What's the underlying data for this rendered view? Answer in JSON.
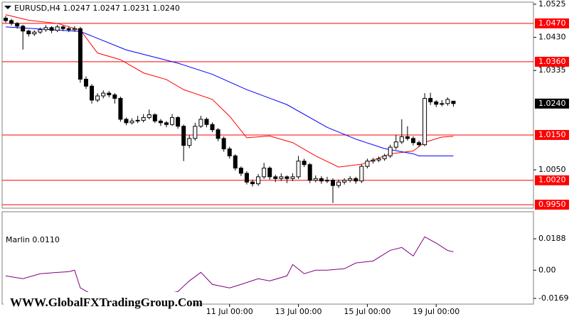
{
  "chart_data": [
    {
      "type": "candlestick",
      "title": "EURUSD,H4  1.0247 1.0247 1.0231 1.0240",
      "categories": [
        null,
        null,
        null,
        null,
        null,
        null,
        null,
        null,
        null,
        null,
        null,
        null,
        null,
        null,
        null,
        null,
        null,
        null,
        null,
        null,
        null,
        null,
        null,
        null,
        null,
        null,
        null,
        null,
        null,
        null,
        null,
        null,
        null,
        null,
        null,
        null,
        null,
        null,
        null,
        "11 Jul 00:00",
        null,
        null,
        null,
        null,
        null,
        null,
        null,
        null,
        null,
        null,
        null,
        "13 Jul 00:00",
        null,
        null,
        null,
        null,
        null,
        null,
        null,
        null,
        null,
        null,
        null,
        "15 Jul 00:00",
        null,
        null,
        null,
        null,
        null,
        null,
        null,
        null,
        null,
        null,
        null,
        "19 Jul 00:00",
        null,
        null,
        null
      ],
      "ohlc": [
        [
          1.0485,
          1.0492,
          1.0472,
          1.0478
        ],
        [
          1.0478,
          1.0483,
          1.0464,
          1.047
        ],
        [
          1.047,
          1.0474,
          1.0455,
          1.0462
        ],
        [
          1.0462,
          1.0466,
          1.0395,
          1.0448
        ],
        [
          1.0448,
          1.0452,
          1.0432,
          1.044
        ],
        [
          1.044,
          1.045,
          1.0434,
          1.0445
        ],
        [
          1.0445,
          1.0458,
          1.044,
          1.0452
        ],
        [
          1.0452,
          1.0465,
          1.0446,
          1.0458
        ],
        [
          1.0458,
          1.0462,
          1.0442,
          1.045
        ],
        [
          1.045,
          1.0466,
          1.0445,
          1.046
        ],
        [
          1.046,
          1.0464,
          1.0448,
          1.0455
        ],
        [
          1.0455,
          1.046,
          1.0445,
          1.0452
        ],
        [
          1.0452,
          1.0462,
          1.0446,
          1.0455
        ],
        [
          1.0455,
          1.046,
          1.03,
          1.031
        ],
        [
          1.031,
          1.0318,
          1.0282,
          1.029
        ],
        [
          1.029,
          1.0296,
          1.024,
          1.025
        ],
        [
          1.025,
          1.027,
          1.0244,
          1.0262
        ],
        [
          1.0262,
          1.0278,
          1.0255,
          1.027
        ],
        [
          1.027,
          1.0276,
          1.0258,
          1.0265
        ],
        [
          1.0265,
          1.027,
          1.024,
          1.0255
        ],
        [
          1.0255,
          1.026,
          1.0188,
          1.0195
        ],
        [
          1.0195,
          1.02,
          1.0178,
          1.0185
        ],
        [
          1.0185,
          1.0198,
          1.018,
          1.019
        ],
        [
          1.019,
          1.0205,
          1.0184,
          1.0192
        ],
        [
          1.0192,
          1.021,
          1.0186,
          1.02
        ],
        [
          1.02,
          1.0223,
          1.0195,
          1.0208
        ],
        [
          1.0208,
          1.0212,
          1.0184,
          1.019
        ],
        [
          1.019,
          1.0196,
          1.0176,
          1.0185
        ],
        [
          1.0185,
          1.019,
          1.0172,
          1.018
        ],
        [
          1.018,
          1.021,
          1.0176,
          1.02
        ],
        [
          1.02,
          1.0204,
          1.0168,
          1.0175
        ],
        [
          1.0175,
          1.018,
          1.0075,
          1.012
        ],
        [
          1.012,
          1.015,
          1.0112,
          1.014
        ],
        [
          1.014,
          1.0185,
          1.0134,
          1.0175
        ],
        [
          1.0175,
          1.0205,
          1.017,
          1.0195
        ],
        [
          1.0195,
          1.02,
          1.0172,
          1.018
        ],
        [
          1.018,
          1.0186,
          1.0158,
          1.0165
        ],
        [
          1.0165,
          1.017,
          1.0132,
          1.014
        ],
        [
          1.014,
          1.0146,
          1.0102,
          1.011
        ],
        [
          1.011,
          1.0116,
          1.0082,
          1.009
        ],
        [
          1.009,
          1.0095,
          1.0048,
          1.0055
        ],
        [
          1.0055,
          1.006,
          1.0032,
          1.004
        ],
        [
          1.004,
          1.0046,
          1.0008,
          1.0015
        ],
        [
          1.0015,
          1.0022,
          1.0002,
          1.001
        ],
        [
          1.001,
          1.0038,
          1.0004,
          1.003
        ],
        [
          1.003,
          1.007,
          1.0024,
          1.0055
        ],
        [
          1.0055,
          1.006,
          1.0022,
          1.003
        ],
        [
          1.003,
          1.0036,
          1.0015,
          1.0025
        ],
        [
          1.0025,
          1.004,
          1.0018,
          1.003
        ],
        [
          1.003,
          1.0034,
          1.0012,
          1.0025
        ],
        [
          1.0025,
          1.004,
          1.0018,
          1.003
        ],
        [
          1.003,
          1.009,
          1.0024,
          1.0075
        ],
        [
          1.0075,
          1.0082,
          1.0058,
          1.0065
        ],
        [
          1.0065,
          1.007,
          1.0012,
          1.002
        ],
        [
          1.002,
          1.0034,
          1.0014,
          1.0025
        ],
        [
          1.0025,
          1.0032,
          1.001,
          1.0018
        ],
        [
          1.0018,
          1.003,
          1.0012,
          1.002
        ],
        [
          1.002,
          1.0026,
          0.9955,
          1.0005
        ],
        [
          1.0005,
          1.0022,
          0.9998,
          1.0015
        ],
        [
          1.0015,
          1.0026,
          1.0008,
          1.002
        ],
        [
          1.002,
          1.0032,
          1.0014,
          1.0025
        ],
        [
          1.0025,
          1.003,
          1.001,
          1.0018
        ],
        [
          1.0018,
          1.0066,
          1.0012,
          1.006
        ],
        [
          1.006,
          1.0082,
          1.0054,
          1.0075
        ],
        [
          1.0075,
          1.0084,
          1.0068,
          1.0078
        ],
        [
          1.0078,
          1.0088,
          1.0072,
          1.0082
        ],
        [
          1.0082,
          1.0096,
          1.0076,
          1.009
        ],
        [
          1.009,
          1.0122,
          1.0084,
          1.0115
        ],
        [
          1.0115,
          1.015,
          1.0108,
          1.013
        ],
        [
          1.013,
          1.0195,
          1.0124,
          1.0145
        ],
        [
          1.0145,
          1.0175,
          1.0134,
          1.014
        ],
        [
          1.014,
          1.0146,
          1.012,
          1.0128
        ],
        [
          1.0128,
          1.0134,
          1.0116,
          1.0122
        ],
        [
          1.0122,
          1.027,
          1.0118,
          1.0255
        ],
        [
          1.0255,
          1.0271,
          1.0236,
          1.0245
        ],
        [
          1.0245,
          1.025,
          1.023,
          1.0238
        ],
        [
          1.0238,
          1.025,
          1.0232,
          1.024
        ],
        [
          1.024,
          1.0258,
          1.0234,
          1.0252
        ],
        [
          1.0247,
          1.0247,
          1.0231,
          1.024
        ]
      ],
      "up_color": "#ffffff",
      "down_color": "#000000",
      "ylim": [
        0.994,
        1.0531
      ],
      "yticks": [
        1.0525,
        {
          "value": 1.043,
          "label": "1.0430"
        },
        1.0335,
        {
          "value": 1.005,
          "label": "1.0050"
        }
      ],
      "levels": [
        {
          "value": 1.047,
          "label": "1.0470"
        },
        {
          "value": 1.036,
          "label": "1.0360"
        },
        {
          "value": 1.015,
          "label": "1.0150"
        },
        {
          "value": 1.002,
          "label": "1.0020"
        },
        {
          "value": 0.995,
          "label": "0.9950"
        }
      ],
      "levels_color": "#ff0000",
      "last_price": {
        "value": 1.024,
        "label": "1.0240"
      },
      "series": [
        {
          "color": "#ff0000",
          "x": [
            0,
            4,
            9,
            13,
            16,
            20,
            24,
            28,
            31,
            36,
            39,
            42,
            46,
            50,
            54,
            58,
            62,
            67,
            71,
            73,
            76,
            78
          ],
          "values": [
            1.0495,
            1.0479,
            1.047,
            1.0451,
            1.0385,
            1.0366,
            1.0328,
            1.0309,
            1.028,
            1.0252,
            1.0204,
            1.0142,
            1.0147,
            1.0128,
            1.009,
            1.0058,
            1.0066,
            1.0096,
            1.0104,
            1.0129,
            1.0144,
            1.0146
          ]
        },
        {
          "color": "#0000ff",
          "x": [
            0,
            13,
            21,
            30,
            36,
            42,
            49,
            56,
            61,
            66,
            71,
            72,
            78
          ],
          "values": [
            1.046,
            1.0447,
            1.0394,
            1.0356,
            1.0324,
            1.028,
            1.0237,
            1.0172,
            1.0138,
            1.0111,
            1.0096,
            1.009,
            1.009
          ]
        }
      ]
    },
    {
      "type": "line",
      "title": "Marlin 0.0110",
      "ylim": [
        -0.0203,
        0.035
      ],
      "yticks": [
        0.0188,
        {
          "value": 0,
          "label": "0.00"
        },
        -0.0169
      ],
      "series": [
        {
          "color": "#800080",
          "x": [
            0,
            3,
            6,
            9,
            11,
            12,
            13,
            16,
            24,
            30,
            32,
            34,
            36,
            39,
            41,
            44,
            46,
            49,
            50,
            52,
            54,
            56,
            59,
            61,
            64,
            67,
            69,
            71,
            73,
            75,
            77,
            78
          ],
          "values": [
            -0.0034,
            -0.0051,
            -0.0021,
            -0.0013,
            -0.0009,
            0,
            -0.0106,
            -0.0162,
            -0.017,
            -0.0128,
            -0.0064,
            -0.0013,
            -0.0085,
            -0.0106,
            -0.0085,
            -0.0051,
            -0.0064,
            -0.0034,
            0.0034,
            -0.0021,
            0,
            0,
            0.0009,
            0.0043,
            0.0055,
            0.0119,
            0.0136,
            0.0085,
            0.02,
            0.0162,
            0.0118,
            0.011
          ]
        }
      ]
    }
  ],
  "watermark": "WWW.GlobalFXTradingGroup.Com"
}
